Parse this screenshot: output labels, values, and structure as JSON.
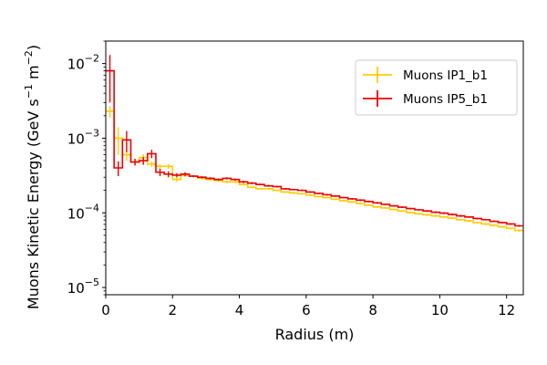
{
  "chart_data": {
    "type": "line",
    "xlabel": "Radius (m)",
    "ylabel_main": "Muons Kinetic Energy (GeV s",
    "ylabel_sup1": "−1",
    "ylabel_mid": " m",
    "ylabel_sup2": "−2",
    "ylabel_end": ")",
    "xscale": "linear",
    "yscale": "log",
    "xlim": [
      0,
      12.5
    ],
    "ylim": [
      8e-06,
      0.02
    ],
    "xticks": [
      0,
      2,
      4,
      6,
      8,
      10,
      12
    ],
    "xtick_labels": [
      "0",
      "2",
      "4",
      "6",
      "8",
      "10",
      "12"
    ],
    "yticks": [
      1e-05,
      0.0001,
      0.001,
      0.01
    ],
    "ytick_labels": [
      {
        "base": "10",
        "exp": "−5"
      },
      {
        "base": "10",
        "exp": "−4"
      },
      {
        "base": "10",
        "exp": "−3"
      },
      {
        "base": "10",
        "exp": "−2"
      }
    ],
    "grid": false,
    "legend_position": "top-right",
    "bin_width": 0.25,
    "series": [
      {
        "name": "Muons IP1_b1",
        "color": "#ffcc00",
        "bin_centers": [
          0.125,
          0.375,
          0.625,
          0.875,
          1.125,
          1.375,
          1.625,
          1.875,
          2.125,
          2.375,
          2.625,
          2.875,
          3.125,
          3.375,
          3.625,
          3.875,
          4.125,
          4.375,
          4.625,
          4.875,
          5.125,
          5.375,
          5.625,
          5.875,
          6.125,
          6.375,
          6.625,
          6.875,
          7.125,
          7.375,
          7.625,
          7.875,
          8.125,
          8.375,
          8.625,
          8.875,
          9.125,
          9.375,
          9.625,
          9.875,
          10.125,
          10.375,
          10.625,
          10.875,
          11.125,
          11.375,
          11.625,
          11.875,
          12.125,
          12.375
        ],
        "values": [
          0.0023,
          0.001,
          0.0006,
          0.00048,
          0.00055,
          0.00045,
          0.00042,
          0.00042,
          0.00028,
          0.00032,
          0.00031,
          0.00029,
          0.00028,
          0.00027,
          0.00026,
          0.00026,
          0.00024,
          0.00022,
          0.00021,
          0.00021,
          0.0002,
          0.00019,
          0.000185,
          0.00018,
          0.000172,
          0.000165,
          0.00016,
          0.000152,
          0.000145,
          0.00014,
          0.000133,
          0.000126,
          0.00012,
          0.000116,
          0.000111,
          0.000106,
          0.000101,
          9.7e-05,
          9.4e-05,
          9.1e-05,
          8.8e-05,
          8.5e-05,
          8.1e-05,
          7.8e-05,
          7.4e-05,
          7.1e-05,
          6.8e-05,
          6.5e-05,
          6.2e-05,
          5.8e-05
        ],
        "errors": [
          0.0004,
          0.0004,
          0.0001,
          5e-05,
          6e-05,
          4e-05,
          3e-05,
          3e-05,
          2e-05,
          2e-05,
          1e-05,
          1e-05,
          1e-05,
          1e-05,
          1e-05,
          1e-05,
          8e-06,
          7e-06,
          6e-06,
          6e-06,
          6e-06,
          5e-06,
          5e-06,
          5e-06,
          5e-06,
          4e-06,
          4e-06,
          4e-06,
          4e-06,
          4e-06,
          4e-06,
          3e-06,
          3e-06,
          3e-06,
          3e-06,
          3e-06,
          3e-06,
          3e-06,
          3e-06,
          3e-06,
          2e-06,
          2e-06,
          2e-06,
          2e-06,
          2e-06,
          2e-06,
          2e-06,
          2e-06,
          2e-06,
          2e-06
        ]
      },
      {
        "name": "Muons IP5_b1",
        "color": "#ee0000",
        "bin_centers": [
          0.125,
          0.375,
          0.625,
          0.875,
          1.125,
          1.375,
          1.625,
          1.875,
          2.125,
          2.375,
          2.625,
          2.875,
          3.125,
          3.375,
          3.625,
          3.875,
          4.125,
          4.375,
          4.625,
          4.875,
          5.125,
          5.375,
          5.625,
          5.875,
          6.125,
          6.375,
          6.625,
          6.875,
          7.125,
          7.375,
          7.625,
          7.875,
          8.125,
          8.375,
          8.625,
          8.875,
          9.125,
          9.375,
          9.625,
          9.875,
          10.125,
          10.375,
          10.625,
          10.875,
          11.125,
          11.375,
          11.625,
          11.875,
          12.125,
          12.375
        ],
        "values": [
          0.008,
          0.0004,
          0.00095,
          0.00048,
          0.0005,
          0.00062,
          0.00035,
          0.00033,
          0.00032,
          0.00033,
          0.00031,
          0.0003,
          0.00029,
          0.00028,
          0.00029,
          0.00028,
          0.00026,
          0.00025,
          0.00024,
          0.00023,
          0.000225,
          0.00021,
          0.000205,
          0.0002,
          0.00019,
          0.000182,
          0.000175,
          0.000168,
          0.00016,
          0.000154,
          0.000148,
          0.000142,
          0.000136,
          0.00013,
          0.000124,
          0.000119,
          0.000114,
          0.00011,
          0.000106,
          0.000102,
          9.9e-05,
          9.5e-05,
          9.1e-05,
          8.8e-05,
          8.4e-05,
          8.1e-05,
          7.7e-05,
          7.4e-05,
          7.1e-05,
          6.7e-05
        ],
        "errors": [
          0.005,
          9e-05,
          0.0003,
          5e-05,
          6e-05,
          8e-05,
          4e-05,
          3e-05,
          2e-05,
          2e-05,
          1e-05,
          1e-05,
          1e-05,
          1e-05,
          1e-05,
          1e-05,
          1e-05,
          8e-06,
          7e-06,
          7e-06,
          6e-06,
          6e-06,
          5e-06,
          5e-06,
          5e-06,
          5e-06,
          5e-06,
          4e-06,
          4e-06,
          4e-06,
          4e-06,
          4e-06,
          4e-06,
          3e-06,
          3e-06,
          3e-06,
          3e-06,
          3e-06,
          3e-06,
          3e-06,
          3e-06,
          3e-06,
          3e-06,
          2e-06,
          2e-06,
          2e-06,
          2e-06,
          2e-06,
          2e-06,
          2e-06
        ]
      }
    ]
  }
}
